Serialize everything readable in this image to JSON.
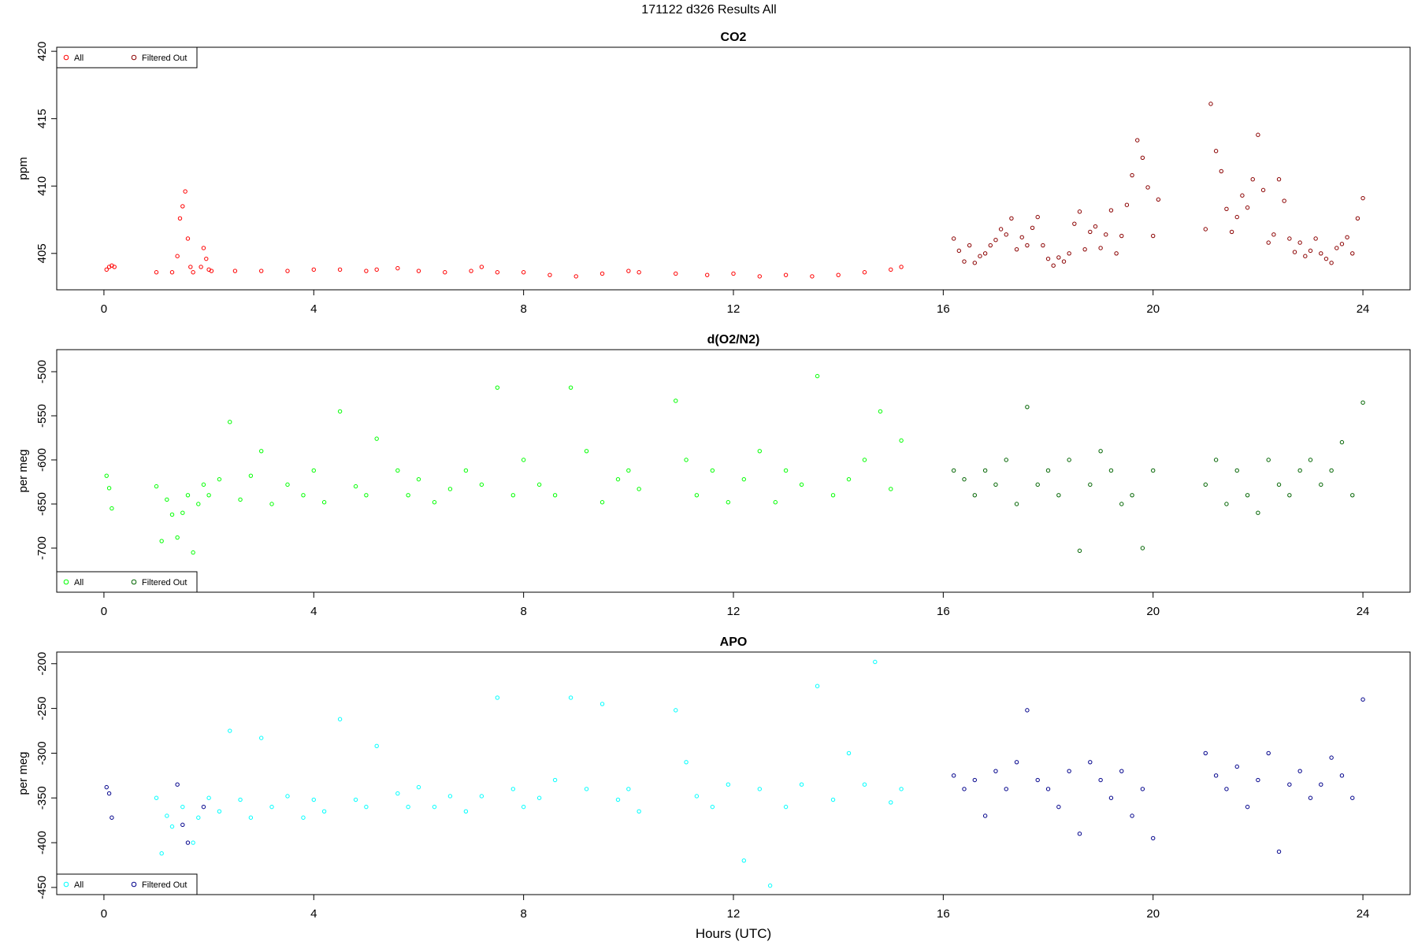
{
  "page": {
    "title": "171122   d326   Results All",
    "xlabel": "Hours (UTC)"
  },
  "chart_data": [
    {
      "type": "scatter",
      "title": "CO2",
      "ylabel": "ppm",
      "xlim": [
        -0.9,
        24.9
      ],
      "ylim": [
        402.3,
        420.3
      ],
      "xticks": [
        0,
        4,
        8,
        12,
        16,
        20,
        24
      ],
      "yticks": [
        405,
        410,
        415,
        420
      ],
      "legend": {
        "placement": "top-left",
        "entries": [
          "All",
          "Filtered Out"
        ]
      },
      "colors": {
        "all": "#ff0000",
        "filtered": "#8b0000"
      },
      "series": [
        {
          "name": "All",
          "x": [
            0.05,
            0.1,
            0.15,
            0.2,
            1.0,
            1.3,
            1.4,
            1.45,
            1.5,
            1.55,
            1.6,
            1.65,
            1.7,
            1.85,
            1.9,
            1.95,
            2.0,
            2.05,
            2.5,
            3.0,
            3.5,
            4.0,
            4.5,
            5.0,
            5.2,
            5.6,
            6.0,
            6.5,
            7.0,
            7.2,
            7.5,
            8.0,
            8.5,
            9.0,
            9.5,
            10.0,
            10.2,
            10.9,
            11.5,
            12.0,
            12.5,
            13.0,
            13.5,
            14.0,
            14.5,
            15.0,
            15.2
          ],
          "y": [
            403.8,
            404.0,
            404.1,
            404.0,
            403.6,
            403.6,
            404.8,
            407.6,
            408.5,
            409.6,
            406.1,
            404.0,
            403.6,
            404.0,
            405.4,
            404.6,
            403.8,
            403.7,
            403.7,
            403.7,
            403.7,
            403.8,
            403.8,
            403.7,
            403.8,
            403.9,
            403.7,
            403.6,
            403.7,
            404.0,
            403.6,
            403.6,
            403.4,
            403.3,
            403.5,
            403.7,
            403.6,
            403.5,
            403.4,
            403.5,
            403.3,
            403.4,
            403.3,
            403.4,
            403.6,
            403.8,
            404.0
          ]
        },
        {
          "name": "Filtered Out",
          "x": [
            16.2,
            16.3,
            16.4,
            16.5,
            16.6,
            16.7,
            16.8,
            16.9,
            17.0,
            17.1,
            17.2,
            17.3,
            17.4,
            17.5,
            17.6,
            17.7,
            17.8,
            17.9,
            18.0,
            18.1,
            18.2,
            18.3,
            18.4,
            18.5,
            18.6,
            18.7,
            18.8,
            18.9,
            19.0,
            19.1,
            19.2,
            19.3,
            19.4,
            19.5,
            19.6,
            19.7,
            19.8,
            19.9,
            20.0,
            20.1,
            21.0,
            21.1,
            21.2,
            21.3,
            21.4,
            21.5,
            21.6,
            21.7,
            21.8,
            21.9,
            22.0,
            22.1,
            22.2,
            22.3,
            22.4,
            22.5,
            22.6,
            22.7,
            22.8,
            22.9,
            23.0,
            23.1,
            23.2,
            23.3,
            23.4,
            23.5,
            23.6,
            23.7,
            23.8,
            23.9,
            24.0
          ],
          "y": [
            406.1,
            405.2,
            404.4,
            405.6,
            404.3,
            404.8,
            405.0,
            405.6,
            406.0,
            406.8,
            406.4,
            407.6,
            405.3,
            406.2,
            405.6,
            406.9,
            407.7,
            405.6,
            404.6,
            404.1,
            404.7,
            404.4,
            405.0,
            407.2,
            408.1,
            405.3,
            406.6,
            407.0,
            405.4,
            406.4,
            408.2,
            405.0,
            406.3,
            408.6,
            410.8,
            413.4,
            412.1,
            409.9,
            406.3,
            409.0,
            406.8,
            416.1,
            412.6,
            411.1,
            408.3,
            406.6,
            407.7,
            409.3,
            408.4,
            410.5,
            413.8,
            409.7,
            405.8,
            406.4,
            410.5,
            408.9,
            406.1,
            405.1,
            405.8,
            404.8,
            405.2,
            406.1,
            405.0,
            404.6,
            404.3,
            405.4,
            405.7,
            406.2,
            405.0,
            407.6,
            409.1
          ]
        }
      ]
    },
    {
      "type": "scatter",
      "title": "d(O2/N2)",
      "ylabel": "per meg",
      "xlim": [
        -0.9,
        24.9
      ],
      "ylim": [
        -750,
        -475
      ],
      "xticks": [
        0,
        4,
        8,
        12,
        16,
        20,
        24
      ],
      "yticks": [
        -500,
        -550,
        -600,
        -650,
        -700
      ],
      "legend": {
        "placement": "bottom-left",
        "entries": [
          "All",
          "Filtered Out"
        ]
      },
      "colors": {
        "all": "#00ff00",
        "filtered": "#006400"
      },
      "series": [
        {
          "name": "All",
          "x": [
            0.05,
            0.1,
            0.15,
            1.0,
            1.1,
            1.2,
            1.3,
            1.4,
            1.5,
            1.6,
            1.7,
            1.8,
            1.9,
            2.0,
            2.2,
            2.4,
            2.6,
            2.8,
            3.0,
            3.2,
            3.5,
            3.8,
            4.0,
            4.2,
            4.5,
            4.8,
            5.0,
            5.2,
            5.6,
            5.8,
            6.0,
            6.3,
            6.6,
            6.9,
            7.2,
            7.5,
            7.8,
            8.0,
            8.3,
            8.6,
            8.9,
            9.2,
            9.5,
            9.8,
            10.0,
            10.2,
            10.9,
            11.1,
            11.3,
            11.6,
            11.9,
            12.2,
            12.5,
            12.8,
            13.0,
            13.3,
            13.6,
            13.9,
            14.2,
            14.5,
            14.8,
            15.0,
            15.2
          ],
          "y": [
            -618,
            -632,
            -655,
            -630,
            -692,
            -645,
            -662,
            -688,
            -660,
            -640,
            -705,
            -650,
            -628,
            -640,
            -622,
            -557,
            -645,
            -618,
            -590,
            -650,
            -628,
            -640,
            -612,
            -648,
            -545,
            -630,
            -640,
            -576,
            -612,
            -640,
            -622,
            -648,
            -633,
            -612,
            -628,
            -518,
            -640,
            -600,
            -628,
            -640,
            -518,
            -590,
            -648,
            -622,
            -612,
            -633,
            -533,
            -600,
            -640,
            -612,
            -648,
            -622,
            -590,
            -648,
            -612,
            -628,
            -505,
            -640,
            -622,
            -600,
            -545,
            -633,
            -578
          ]
        },
        {
          "name": "Filtered Out",
          "x": [
            16.2,
            16.4,
            16.6,
            16.8,
            17.0,
            17.2,
            17.4,
            17.6,
            17.8,
            18.0,
            18.2,
            18.4,
            18.6,
            18.8,
            19.0,
            19.2,
            19.4,
            19.6,
            19.8,
            20.0,
            21.0,
            21.2,
            21.4,
            21.6,
            21.8,
            22.0,
            22.2,
            22.4,
            22.6,
            22.8,
            23.0,
            23.2,
            23.4,
            23.6,
            23.8,
            24.0
          ],
          "y": [
            -612,
            -622,
            -640,
            -612,
            -628,
            -600,
            -650,
            -540,
            -628,
            -612,
            -640,
            -600,
            -703,
            -628,
            -590,
            -612,
            -650,
            -640,
            -700,
            -612,
            -628,
            -600,
            -650,
            -612,
            -640,
            -660,
            -600,
            -628,
            -640,
            -612,
            -600,
            -628,
            -612,
            -580,
            -640,
            -535
          ]
        }
      ]
    },
    {
      "type": "scatter",
      "title": "APO",
      "ylabel": "per meg",
      "xlim": [
        -0.9,
        24.9
      ],
      "ylim": [
        -458,
        -187
      ],
      "xticks": [
        0,
        4,
        8,
        12,
        16,
        20,
        24
      ],
      "yticks": [
        -200,
        -250,
        -300,
        -350,
        -400,
        -450
      ],
      "legend": {
        "placement": "bottom-left",
        "entries": [
          "All",
          "Filtered Out"
        ]
      },
      "colors": {
        "all": "#00ffff",
        "filtered": "#00008b"
      },
      "series": [
        {
          "name": "All",
          "x": [
            1.0,
            1.1,
            1.2,
            1.3,
            1.5,
            1.7,
            1.8,
            2.0,
            2.2,
            2.4,
            2.6,
            2.8,
            3.0,
            3.2,
            3.5,
            3.8,
            4.0,
            4.2,
            4.5,
            4.8,
            5.0,
            5.2,
            5.6,
            5.8,
            6.0,
            6.3,
            6.6,
            6.9,
            7.2,
            7.5,
            7.8,
            8.0,
            8.3,
            8.6,
            8.9,
            9.2,
            9.5,
            9.8,
            10.0,
            10.2,
            10.9,
            11.1,
            11.3,
            11.6,
            11.9,
            12.2,
            12.5,
            12.7,
            13.0,
            13.3,
            13.6,
            13.9,
            14.2,
            14.5,
            14.7,
            15.0,
            15.2
          ],
          "y": [
            -350,
            -412,
            -370,
            -382,
            -360,
            -400,
            -372,
            -350,
            -365,
            -275,
            -352,
            -372,
            -283,
            -360,
            -348,
            -372,
            -352,
            -365,
            -262,
            -352,
            -360,
            -292,
            -345,
            -360,
            -338,
            -360,
            -348,
            -365,
            -348,
            -238,
            -340,
            -360,
            -350,
            -330,
            -238,
            -340,
            -245,
            -352,
            -340,
            -365,
            -252,
            -310,
            -348,
            -360,
            -335,
            -420,
            -340,
            -448,
            -360,
            -335,
            -225,
            -352,
            -300,
            -335,
            -198,
            -355,
            -340
          ]
        },
        {
          "name": "Filtered Out",
          "x": [
            0.05,
            0.1,
            0.15,
            1.4,
            1.5,
            1.6,
            1.9,
            16.2,
            16.4,
            16.6,
            16.8,
            17.0,
            17.2,
            17.4,
            17.6,
            17.8,
            18.0,
            18.2,
            18.4,
            18.6,
            18.8,
            19.0,
            19.2,
            19.4,
            19.6,
            19.8,
            20.0,
            21.0,
            21.2,
            21.4,
            21.6,
            21.8,
            22.0,
            22.2,
            22.4,
            22.6,
            22.8,
            23.0,
            23.2,
            23.4,
            23.6,
            23.8,
            24.0
          ],
          "y": [
            -338,
            -345,
            -372,
            -335,
            -380,
            -400,
            -360,
            -325,
            -340,
            -330,
            -370,
            -320,
            -340,
            -310,
            -252,
            -330,
            -340,
            -360,
            -320,
            -390,
            -310,
            -330,
            -350,
            -320,
            -370,
            -340,
            -395,
            -300,
            -325,
            -340,
            -315,
            -360,
            -330,
            -300,
            -410,
            -335,
            -320,
            -350,
            -335,
            -305,
            -325,
            -350,
            -240
          ]
        }
      ]
    }
  ]
}
